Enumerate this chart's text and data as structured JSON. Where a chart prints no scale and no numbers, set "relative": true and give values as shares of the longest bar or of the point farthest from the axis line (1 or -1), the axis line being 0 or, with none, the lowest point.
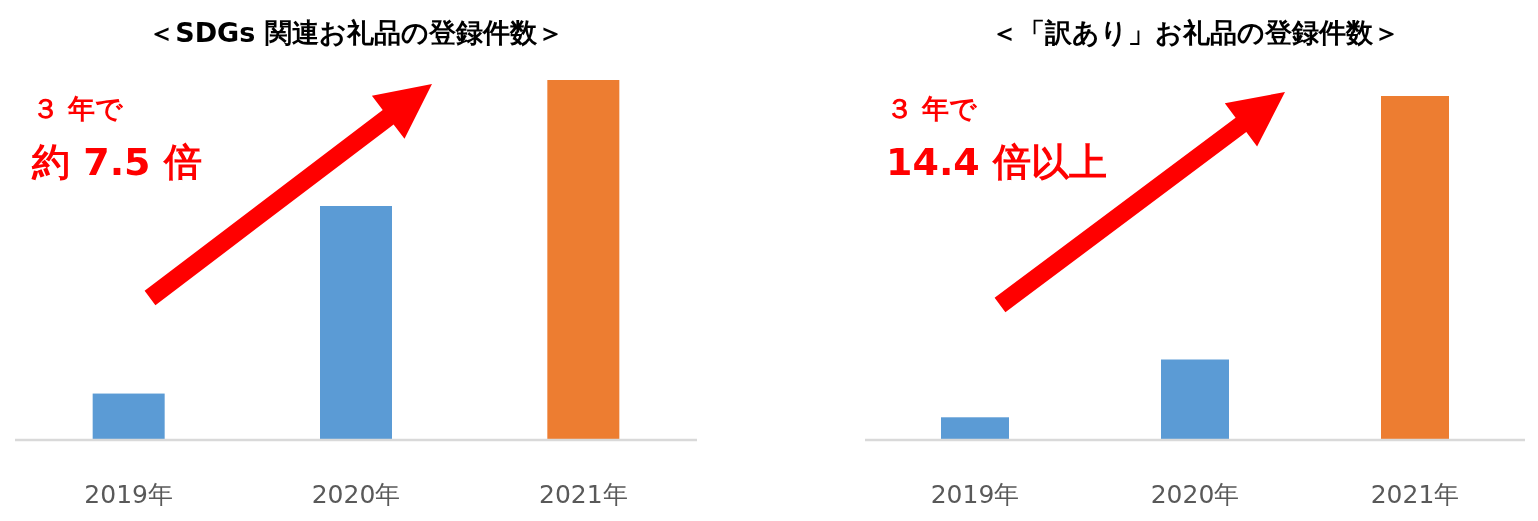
{
  "chart_data": [
    {
      "type": "bar",
      "title": "＜SDGs 関連お礼品の登録件数＞",
      "categories": [
        "2019年",
        "2020年",
        "2021年"
      ],
      "values": [
        0.129,
        0.65,
        1
      ],
      "colors": [
        "#5b9bd5",
        "#5b9bd5",
        "#ed7d31"
      ],
      "relative": true,
      "annotations": [
        "３ 年で",
        "約 7.5 倍"
      ]
    },
    {
      "type": "bar",
      "title": "＜「訳あり」お礼品の登録件数＞",
      "categories": [
        "2019年",
        "2020年",
        "2021年"
      ],
      "values": [
        0.066,
        0.234,
        1
      ],
      "colors": [
        "#5b9bd5",
        "#5b9bd5",
        "#ed7d31"
      ],
      "relative": true,
      "annotations": [
        "３ 年で",
        "14.4 倍以上"
      ]
    }
  ]
}
